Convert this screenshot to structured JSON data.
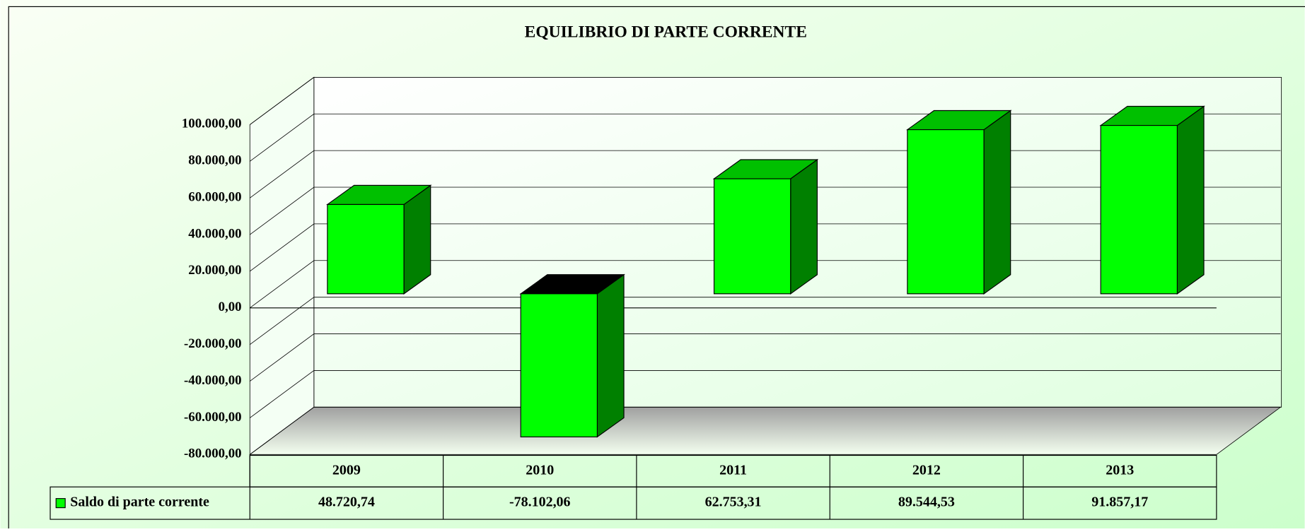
{
  "chart_data": {
    "type": "bar3d",
    "title": "EQUILIBRIO DI PARTE CORRENTE",
    "categories": [
      "2009",
      "2010",
      "2011",
      "2012",
      "2013"
    ],
    "series": [
      {
        "name": "Saldo di parte corrente",
        "color": "#00ff00",
        "values": [
          48720.74,
          -78102.06,
          62753.31,
          89544.53,
          91857.17
        ],
        "value_labels": [
          "48.720,74",
          "-78.102,06",
          "62.753,31",
          "89.544,53",
          "91.857,17"
        ]
      }
    ],
    "ylim": [
      -80000,
      100000
    ],
    "yticks": [
      {
        "value": -80000,
        "label": "-80.000,00"
      },
      {
        "value": -60000,
        "label": "-60.000,00"
      },
      {
        "value": -40000,
        "label": "-40.000,00"
      },
      {
        "value": -20000,
        "label": "-20.000,00"
      },
      {
        "value": 0,
        "label": "0,00"
      },
      {
        "value": 20000,
        "label": "20.000,00"
      },
      {
        "value": 40000,
        "label": "40.000,00"
      },
      {
        "value": 60000,
        "label": "60.000,00"
      },
      {
        "value": 80000,
        "label": "80.000,00"
      },
      {
        "value": 100000,
        "label": "100.000,00"
      }
    ],
    "grid": true
  }
}
